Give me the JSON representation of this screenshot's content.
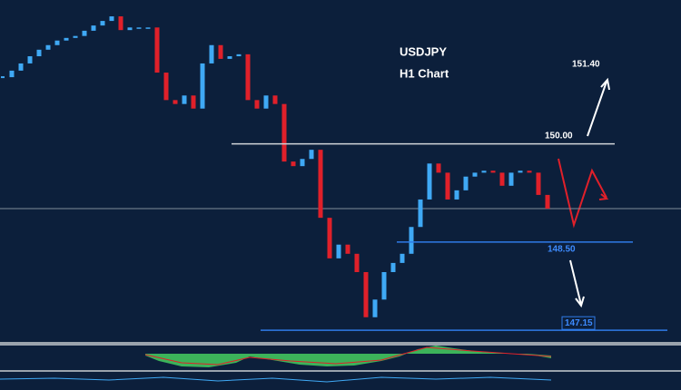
{
  "chart_data": {
    "type": "candlestick",
    "title": "USDJPY",
    "subtitle": "H1 Chart",
    "values": [
      151.02,
      151.12,
      151.23,
      151.34,
      151.44,
      151.51,
      151.58,
      151.62,
      151.65,
      151.73,
      151.81,
      151.88,
      151.95,
      151.74,
      151.78,
      151.78,
      151.78,
      151.09,
      150.67,
      150.61,
      150.74,
      150.54,
      151.23,
      151.51,
      151.3,
      151.34,
      151.37,
      150.67,
      150.54,
      150.74,
      150.61,
      149.73,
      149.66,
      149.77,
      149.91,
      148.87,
      148.25,
      148.46,
      148.32,
      148.04,
      147.35,
      147.62,
      148.04,
      148.18,
      148.32,
      148.73,
      149.15,
      149.7,
      149.56,
      149.15,
      149.29,
      149.5,
      149.56,
      149.59,
      149.56,
      149.36,
      149.56,
      149.59,
      149.56,
      149.22,
      149.01
    ],
    "up_color": "#3fa9f5",
    "down_color": "#e0202a",
    "ylim": [
      147.0,
      152.2
    ],
    "levels": [
      {
        "value": 151.4,
        "label": "151.40"
      },
      {
        "value": 150,
        "label": "150.00"
      },
      {
        "value": 148.5,
        "label": "148.50"
      },
      {
        "value": 147.15,
        "label": "147.15"
      }
    ]
  }
}
